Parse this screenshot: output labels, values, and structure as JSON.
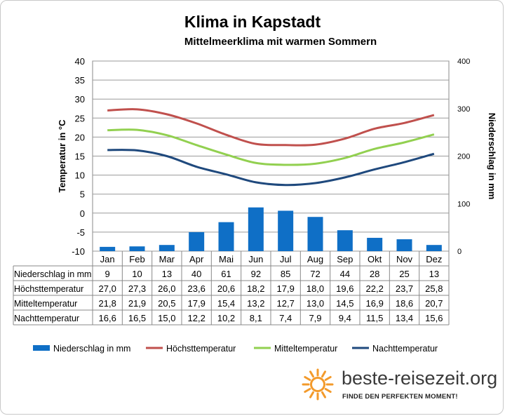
{
  "chart_data": {
    "type": "bar",
    "title": "Klima in Kapstadt",
    "subtitle": "Mittelmeerklima mit warmen Sommern",
    "categories": [
      "Jan",
      "Feb",
      "Mar",
      "Apr",
      "Mai",
      "Jun",
      "Jul",
      "Aug",
      "Sep",
      "Okt",
      "Nov",
      "Dez"
    ],
    "ylabel_left": "Temperatur in °C",
    "ylabel_right": "Niederschlag in mm",
    "ylim_left": [
      -10,
      40
    ],
    "yticks_left": [
      "40",
      "35",
      "30",
      "25",
      "20",
      "15",
      "10",
      "5",
      "0",
      "-5",
      "-10"
    ],
    "ylim_right": [
      0,
      400
    ],
    "yticks_right": [
      "400",
      "300",
      "200",
      "100",
      "0"
    ],
    "grid": true,
    "legend_position": "bottom",
    "series": [
      {
        "name": "Niederschlag in mm",
        "type": "bar",
        "axis": "right",
        "color": "#0f6fc6",
        "values": [
          9,
          10,
          13,
          40,
          61,
          92,
          85,
          72,
          44,
          28,
          25,
          13
        ],
        "labels": [
          "9",
          "10",
          "13",
          "40",
          "61",
          "92",
          "85",
          "72",
          "44",
          "28",
          "25",
          "13"
        ]
      },
      {
        "name": "Höchsttemperatur",
        "type": "line",
        "axis": "left",
        "color": "#c0504d",
        "values": [
          27.0,
          27.3,
          26.0,
          23.6,
          20.6,
          18.2,
          17.9,
          18.0,
          19.6,
          22.2,
          23.7,
          25.8
        ],
        "labels": [
          "27,0",
          "27,3",
          "26,0",
          "23,6",
          "20,6",
          "18,2",
          "17,9",
          "18,0",
          "19,6",
          "22,2",
          "23,7",
          "25,8"
        ]
      },
      {
        "name": "Mitteltemperatur",
        "type": "line",
        "axis": "left",
        "color": "#92d050",
        "values": [
          21.8,
          21.9,
          20.5,
          17.9,
          15.4,
          13.2,
          12.7,
          13.0,
          14.5,
          16.9,
          18.6,
          20.7
        ],
        "labels": [
          "21,8",
          "21,9",
          "20,5",
          "17,9",
          "15,4",
          "13,2",
          "12,7",
          "13,0",
          "14,5",
          "16,9",
          "18,6",
          "20,7"
        ]
      },
      {
        "name": "Nachttemperatur",
        "type": "line",
        "axis": "left",
        "color": "#1f497d",
        "values": [
          16.6,
          16.5,
          15.0,
          12.2,
          10.2,
          8.1,
          7.4,
          7.9,
          9.4,
          11.5,
          13.4,
          15.6
        ],
        "labels": [
          "16,6",
          "16,5",
          "15,0",
          "12,2",
          "10,2",
          "8,1",
          "7,4",
          "7,9",
          "9,4",
          "11,5",
          "13,4",
          "15,6"
        ]
      }
    ],
    "table_row_labels": [
      "Niederschlag in mm",
      "Höchsttemperatur",
      "Mitteltemperatur",
      "Nachttemperatur"
    ]
  },
  "branding": {
    "logo_text": "beste-reisezeit.org",
    "tagline": "FINDE DEN PERFEKTEN MOMENT!",
    "sun_color": "#f39a2b"
  }
}
